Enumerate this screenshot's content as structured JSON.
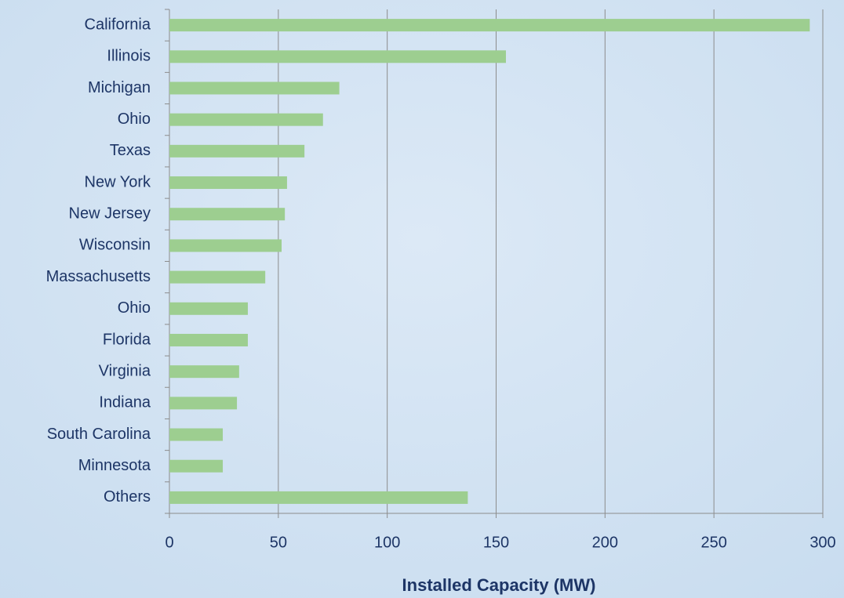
{
  "chart_data": {
    "type": "barh",
    "x_label": "Installed Capacity (MW)",
    "categories": [
      "California",
      "Illinois",
      "Michigan",
      "Ohio",
      "Texas",
      "New York",
      "New Jersey",
      "Wisconsin",
      "Massachusetts",
      "Ohio",
      "Florida",
      "Virginia",
      "Indiana",
      "South Carolina",
      "Minnesota",
      "Others"
    ],
    "values": [
      294,
      154.5,
      78,
      70.5,
      62,
      54,
      53,
      51.5,
      44,
      36,
      36,
      32,
      31,
      24.5,
      24.5,
      137
    ],
    "color": "#9dce90",
    "xlim": [
      0,
      300
    ],
    "xticks": [
      0,
      50,
      100,
      150,
      200,
      250,
      300
    ],
    "grid": true
  }
}
